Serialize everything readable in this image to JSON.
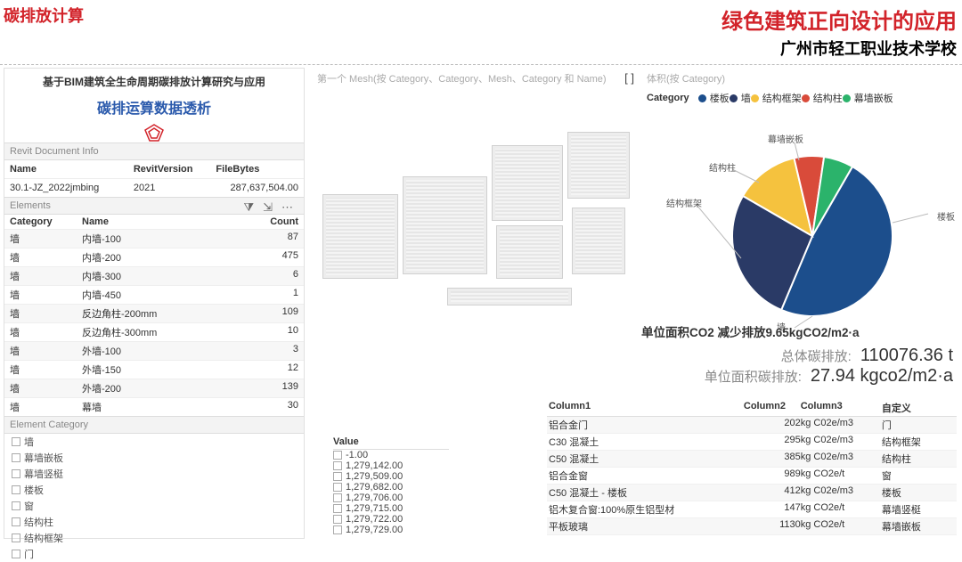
{
  "header": {
    "left": "碳排放计算",
    "right_line1": "绿色建筑正向设计的应用",
    "right_line2": "广州市轻工职业技术学校"
  },
  "left_panel": {
    "title1": "基于BIM建筑全生命周期碳排放计算研究与应用",
    "title2": "碳排运算数据透析",
    "logo_color": "#d2232a",
    "doc_section_label": "Revit Document Info",
    "doc_cols": {
      "c1": "Name",
      "c2": "RevitVersion",
      "c3": "FileBytes"
    },
    "doc_row": {
      "c1": "30.1-JZ_2022jmbing",
      "c2": "2021",
      "c3": "287,637,504.00"
    },
    "elements_label": "Elements",
    "icons": {
      "filter": "⧩",
      "export": "⇲",
      "more": "⋯"
    },
    "el_cols": {
      "c1": "Category",
      "c2": "Name",
      "c3": "Count"
    },
    "rows": [
      {
        "c1": "墙",
        "c2": "内墙-100",
        "c3": "87"
      },
      {
        "c1": "墙",
        "c2": "内墙-200",
        "c3": "475"
      },
      {
        "c1": "墙",
        "c2": "内墙-300",
        "c3": "6"
      },
      {
        "c1": "墙",
        "c2": "内墙-450",
        "c3": "1"
      },
      {
        "c1": "墙",
        "c2": "反边角柱-200mm",
        "c3": "109"
      },
      {
        "c1": "墙",
        "c2": "反边角柱-300mm",
        "c3": "10"
      },
      {
        "c1": "墙",
        "c2": "外墙-100",
        "c3": "3"
      },
      {
        "c1": "墙",
        "c2": "外墙-150",
        "c3": "12"
      },
      {
        "c1": "墙",
        "c2": "外墙-200",
        "c3": "139"
      },
      {
        "c1": "墙",
        "c2": "幕墙",
        "c3": "30"
      }
    ],
    "cat_label": "Element Category",
    "cats": [
      "墙",
      "幕墙嵌板",
      "幕墙竖梃",
      "楼板",
      "窗",
      "结构柱",
      "结构框架",
      "门"
    ]
  },
  "mid": {
    "label": "第一个 Mesh(按 Category、Category、Mesh、Category 和 Name)",
    "expand_icon": "[ ]"
  },
  "pie": {
    "top_label": "体积(按 Category)",
    "legend_title": "Category",
    "items": [
      {
        "label": "楼板",
        "color": "#1c4e8c",
        "pct": 48
      },
      {
        "label": "墙",
        "color": "#2a3a66",
        "pct": 27
      },
      {
        "label": "结构框架",
        "color": "#f5c23e",
        "pct": 13
      },
      {
        "label": "结构柱",
        "color": "#d94b3a",
        "pct": 6
      },
      {
        "label": "幕墙嵌板",
        "color": "#2bb36b",
        "pct": 6
      }
    ],
    "labels": {
      "right": "楼板",
      "bottom": "墙",
      "left": "结构框架",
      "top_left": "结构柱",
      "top": "幕墙嵌板"
    }
  },
  "stats": {
    "bold": "单位面积CO2 减少排放9.65kgCO2/m2·a",
    "row1_label": "总体碳排放:",
    "row1_val": "110076.36 t",
    "row2_label": "单位面积碳排放:",
    "row2_val": "27.94 kgco2/m2·a"
  },
  "value_list": {
    "header": "Value",
    "rows": [
      "-1.00",
      "1,279,142.00",
      "1,279,509.00",
      "1,279,682.00",
      "1,279,706.00",
      "1,279,715.00",
      "1,279,722.00",
      "1,279,729.00"
    ]
  },
  "material_table": {
    "cols": {
      "c1": "Column1",
      "c2": "Column2",
      "c3": "Column3",
      "c4": "自定义"
    },
    "rows": [
      {
        "c1": "铝合金门",
        "c2": "202",
        "c3": "kg C02e/m3",
        "c4": "门"
      },
      {
        "c1": "C30 混凝土",
        "c2": "295",
        "c3": "kg C02e/m3",
        "c4": "结构框架"
      },
      {
        "c1": "C50 混凝土",
        "c2": "385",
        "c3": "kg C02e/m3",
        "c4": "结构柱"
      },
      {
        "c1": "铝合金窗",
        "c2": "989",
        "c3": "kg CO2e/t",
        "c4": "窗"
      },
      {
        "c1": "C50 混凝土 - 楼板",
        "c2": "412",
        "c3": "kg C02e/m3",
        "c4": "楼板"
      },
      {
        "c1": "铝木复合窗:100%原生铝型材",
        "c2": "147",
        "c3": "kg CO2e/t",
        "c4": "幕墙竖梃"
      },
      {
        "c1": "平板玻璃",
        "c2": "1130",
        "c3": "kg CO2e/t",
        "c4": "幕墙嵌板"
      }
    ]
  },
  "colors": {
    "bldg_fill": "#ededed",
    "bldg_border": "#d0d0d0"
  }
}
